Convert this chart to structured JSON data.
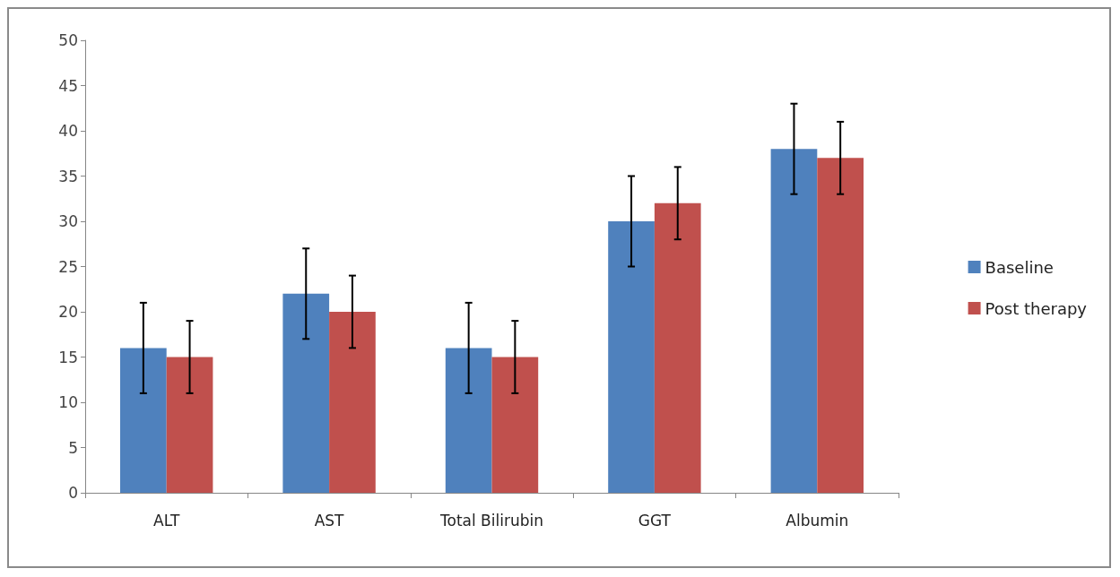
{
  "chart_data": {
    "type": "bar",
    "categories": [
      "ALT",
      "AST",
      "Total Bilirubin",
      "GGT",
      "Albumin"
    ],
    "series": [
      {
        "name": "Baseline",
        "color": "#4f81bd",
        "values": [
          16,
          22,
          16,
          30,
          38
        ],
        "errors": [
          5,
          5,
          5,
          5,
          5
        ]
      },
      {
        "name": "Post therapy",
        "color": "#c0504d",
        "values": [
          15,
          20,
          15,
          32,
          37
        ],
        "errors": [
          4,
          4,
          4,
          4,
          4
        ]
      }
    ],
    "ylim": [
      0,
      50
    ],
    "yticks": [
      0,
      5,
      10,
      15,
      20,
      25,
      30,
      35,
      40,
      45,
      50
    ],
    "grid": false,
    "legend": "right"
  }
}
